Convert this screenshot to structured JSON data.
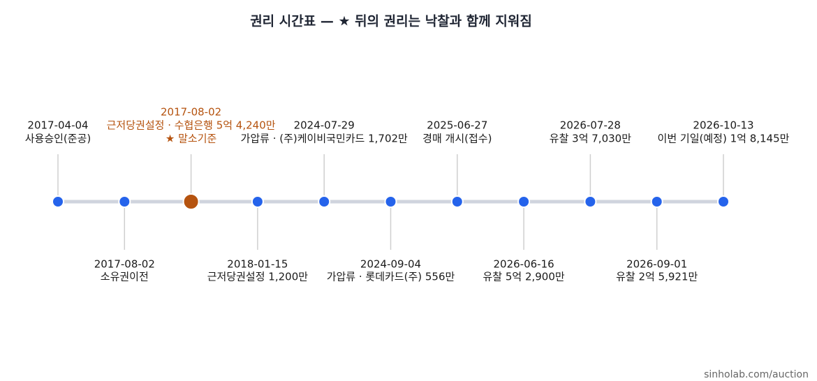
{
  "title": "권리 시간표 — ★ 뒤의 권리는 낙찰과 함께 지워짐",
  "events": [
    {
      "date": "2017-04-04",
      "label": "사용승인(준공)"
    },
    {
      "date": "2017-08-02",
      "label": "소유권이전"
    },
    {
      "date": "2017-08-02",
      "label": "근저당권설정 · 수협은행 5억 4,240만",
      "note": "★ 말소기준"
    },
    {
      "date": "2018-01-15",
      "label": "근저당권설정 1,200만"
    },
    {
      "date": "2024-07-29",
      "label": "가압류 · (주)케이비국민카드 1,702만"
    },
    {
      "date": "2024-09-04",
      "label": "가압류 · 롯데카드(주) 556만"
    },
    {
      "date": "2025-06-27",
      "label": "경매 개시(접수)"
    },
    {
      "date": "2026-06-16",
      "label": "유찰 5억 2,900만"
    },
    {
      "date": "2026-07-28",
      "label": "유찰 3억 7,030만"
    },
    {
      "date": "2026-09-01",
      "label": "유찰 2억 5,921만"
    },
    {
      "date": "2026-10-13",
      "label": "이번 기일(예정) 1억 8,145만"
    }
  ],
  "footer": "sinholab.com/auction"
}
